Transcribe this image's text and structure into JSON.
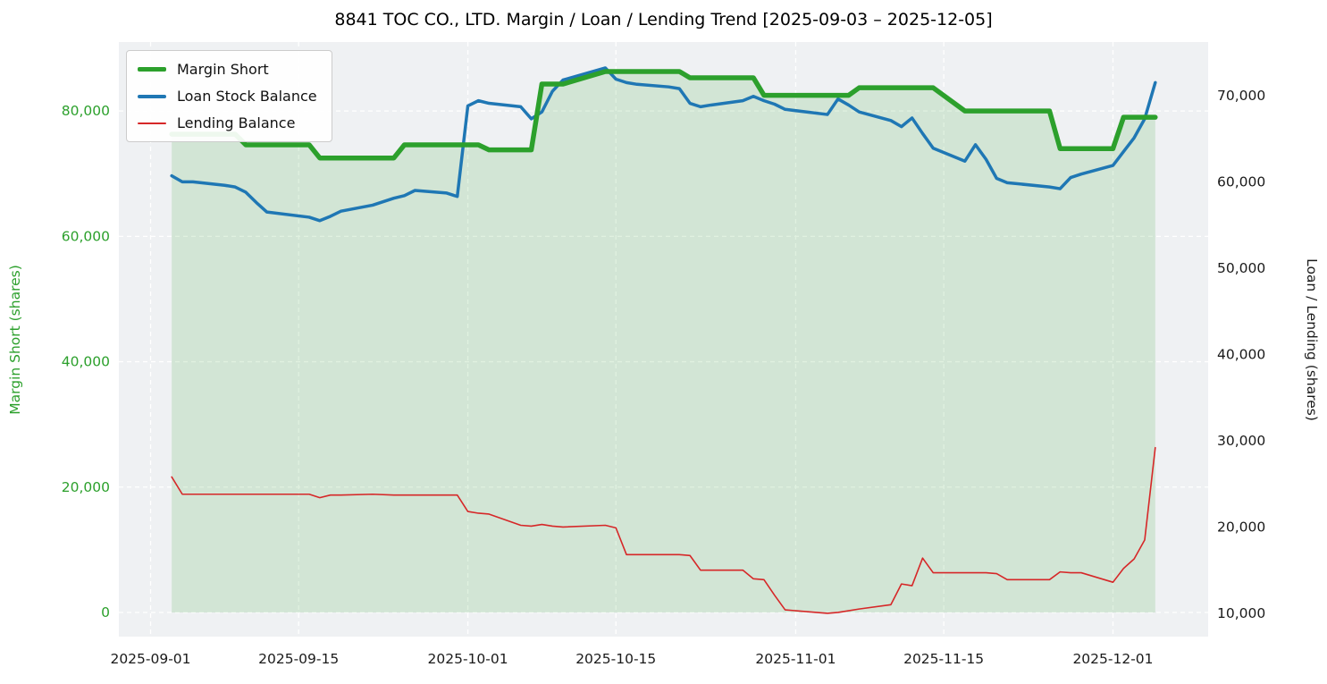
{
  "title": "8841 TOC CO., LTD. Margin / Loan / Lending Trend [2025-09-03 – 2025-12-05]",
  "colors": {
    "plot_bg": "#eff1f3",
    "grid": "#ffffff",
    "tick_text": "#1a1a1a"
  },
  "legend": {
    "items": [
      {
        "label": "Margin Short",
        "color": "#2ca02c",
        "swatch_height": 5
      },
      {
        "label": "Loan Stock Balance",
        "color": "#1f77b4",
        "swatch_height": 4
      },
      {
        "label": "Lending Balance",
        "color": "#d62728",
        "swatch_height": 2
      }
    ]
  },
  "left_axis": {
    "label": "Margin Short (shares)",
    "color": "#2ca02c",
    "ticks": [
      0,
      20000,
      40000,
      60000,
      80000
    ],
    "tick_labels": [
      "0",
      "20,000",
      "40,000",
      "60,000",
      "80,000"
    ]
  },
  "right_axis": {
    "label": "Loan / Lending (shares)",
    "color": "#1a1a1a",
    "ticks": [
      10000,
      20000,
      30000,
      40000,
      50000,
      60000,
      70000
    ],
    "tick_labels": [
      "10,000",
      "20,000",
      "30,000",
      "40,000",
      "50,000",
      "60,000",
      "70,000"
    ]
  },
  "x_axis": {
    "ticks": [
      "2025-09-01",
      "2025-09-15",
      "2025-10-01",
      "2025-10-15",
      "2025-11-01",
      "2025-11-15",
      "2025-12-01"
    ],
    "tick_labels": [
      "2025-09-01",
      "2025-09-15",
      "2025-10-01",
      "2025-10-15",
      "2025-11-01",
      "2025-11-15",
      "2025-12-01"
    ]
  },
  "chart_data": {
    "type": "line",
    "title": "8841 TOC CO., LTD. Margin / Loan / Lending Trend [2025-09-03 – 2025-12-05]",
    "xlabel": "",
    "ylabel_left": "Margin Short (shares)",
    "ylabel_right": "Loan / Lending (shares)",
    "grid": true,
    "legend_position": "upper left",
    "xlim": [
      "2025-08-29",
      "2025-12-10"
    ],
    "left_ylim": [
      -3850,
      91000
    ],
    "right_ylim": [
      7300,
      76200
    ],
    "x": [
      "2025-09-03",
      "2025-09-04",
      "2025-09-05",
      "2025-09-08",
      "2025-09-09",
      "2025-09-10",
      "2025-09-11",
      "2025-09-12",
      "2025-09-16",
      "2025-09-17",
      "2025-09-18",
      "2025-09-19",
      "2025-09-22",
      "2025-09-24",
      "2025-09-25",
      "2025-09-26",
      "2025-09-29",
      "2025-09-30",
      "2025-10-01",
      "2025-10-02",
      "2025-10-03",
      "2025-10-06",
      "2025-10-07",
      "2025-10-08",
      "2025-10-09",
      "2025-10-10",
      "2025-10-14",
      "2025-10-15",
      "2025-10-16",
      "2025-10-17",
      "2025-10-20",
      "2025-10-21",
      "2025-10-22",
      "2025-10-23",
      "2025-10-24",
      "2025-10-27",
      "2025-10-28",
      "2025-10-29",
      "2025-10-30",
      "2025-10-31",
      "2025-11-04",
      "2025-11-05",
      "2025-11-06",
      "2025-11-07",
      "2025-11-10",
      "2025-11-11",
      "2025-11-12",
      "2025-11-13",
      "2025-11-14",
      "2025-11-17",
      "2025-11-18",
      "2025-11-19",
      "2025-11-20",
      "2025-11-21",
      "2025-11-25",
      "2025-11-26",
      "2025-11-27",
      "2025-11-28",
      "2025-12-01",
      "2025-12-02",
      "2025-12-03",
      "2025-12-04",
      "2025-12-05"
    ],
    "series": [
      {
        "name": "Margin Short",
        "axis": "left",
        "color": "#2ca02c",
        "line_width": 5.5,
        "fill": true,
        "fill_color": "rgba(44,160,44,0.15)",
        "values": [
          76300,
          76300,
          76300,
          76300,
          76300,
          74600,
          74600,
          74600,
          74600,
          72500,
          72500,
          72500,
          72500,
          72500,
          74600,
          74600,
          74600,
          74600,
          74600,
          74600,
          73800,
          73800,
          73800,
          84300,
          84300,
          84300,
          86300,
          86300,
          86300,
          86300,
          86300,
          86300,
          85300,
          85300,
          85300,
          85300,
          85300,
          82500,
          82500,
          82500,
          82500,
          82500,
          82500,
          83700,
          83700,
          83700,
          83700,
          83700,
          83700,
          80000,
          80000,
          80000,
          80000,
          80000,
          80000,
          74000,
          74000,
          74000,
          74000,
          79000,
          79000,
          79000,
          79000
        ]
      },
      {
        "name": "Loan Stock Balance",
        "axis": "right",
        "color": "#1f77b4",
        "line_width": 3.5,
        "fill": false,
        "values": [
          60700,
          60000,
          60000,
          59600,
          59400,
          58800,
          57600,
          56500,
          55900,
          55500,
          56000,
          56600,
          57300,
          58100,
          58400,
          59000,
          58700,
          58300,
          68800,
          69400,
          69100,
          68700,
          67300,
          68100,
          70500,
          71800,
          73200,
          71900,
          71500,
          71300,
          71000,
          70800,
          69100,
          68700,
          68900,
          69400,
          69900,
          69400,
          69000,
          68400,
          67800,
          69600,
          68900,
          68100,
          67100,
          66400,
          67400,
          65600,
          63900,
          62400,
          64300,
          62600,
          60400,
          59900,
          59400,
          59200,
          60500,
          60900,
          61900,
          63500,
          65100,
          67300,
          71500
        ]
      },
      {
        "name": "Lending Balance",
        "axis": "right",
        "color": "#d62728",
        "line_width": 1.6,
        "fill": false,
        "values": [
          25800,
          23800,
          23800,
          23800,
          23800,
          23800,
          23800,
          23800,
          23800,
          23400,
          23700,
          23700,
          23800,
          23700,
          23700,
          23700,
          23700,
          23700,
          21800,
          21600,
          21500,
          20200,
          20100,
          20300,
          20100,
          20000,
          20200,
          19900,
          16800,
          16800,
          16800,
          16800,
          16700,
          15000,
          15000,
          15000,
          14000,
          13900,
          12100,
          10400,
          10000,
          10100,
          10300,
          10500,
          11000,
          13400,
          13200,
          16400,
          14700,
          14700,
          14700,
          14700,
          14600,
          13900,
          13900,
          14800,
          14700,
          14700,
          13600,
          15200,
          16300,
          18500,
          29200
        ]
      }
    ]
  }
}
